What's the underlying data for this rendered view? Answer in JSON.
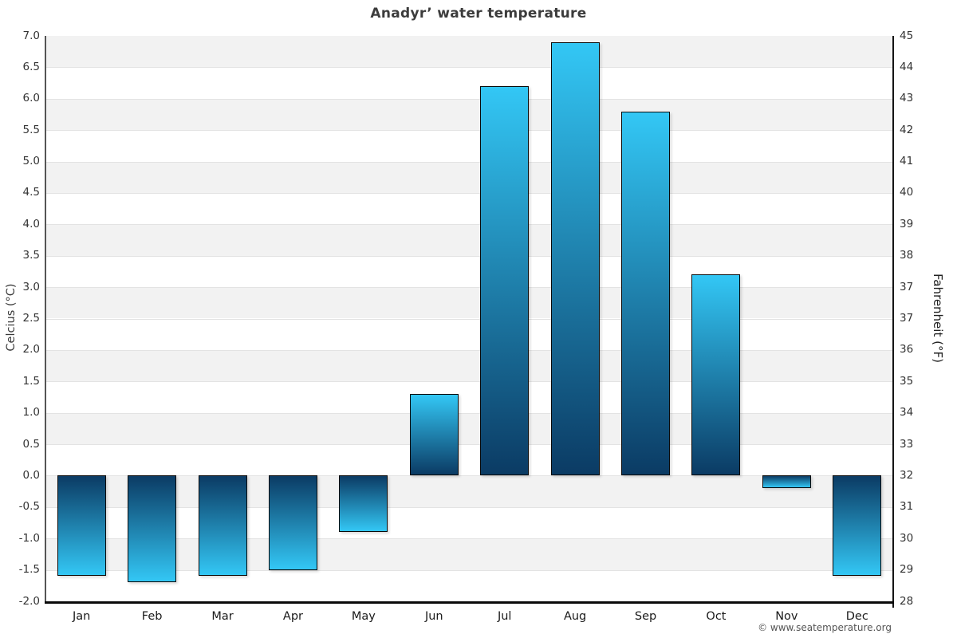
{
  "title": "Anadyr’ water temperature",
  "credit": "© www.seatemperature.org",
  "axes": {
    "left": {
      "label": "Celcius (°C)",
      "ticks": [
        "7.0",
        "6.5",
        "6.0",
        "5.5",
        "5.0",
        "4.5",
        "4.0",
        "3.5",
        "3.0",
        "2.5",
        "2.0",
        "1.5",
        "1.0",
        "0.5",
        "0.0",
        "-0.5",
        "-1.0",
        "-1.5",
        "-2.0"
      ]
    },
    "right": {
      "label": "Fahrenheit (°F)",
      "ticks": [
        "45",
        "44",
        "43",
        "42",
        "41",
        "40",
        "39",
        "38",
        "37",
        "37",
        "36",
        "35",
        "34",
        "33",
        "32",
        "31",
        "30",
        "29",
        "28"
      ]
    }
  },
  "chart_data": {
    "type": "bar",
    "title": "Anadyr’ water temperature",
    "categories": [
      "Jan",
      "Feb",
      "Mar",
      "Apr",
      "May",
      "Jun",
      "Jul",
      "Aug",
      "Sep",
      "Oct",
      "Nov",
      "Dec"
    ],
    "values": [
      -1.6,
      -1.7,
      -1.6,
      -1.5,
      -0.9,
      1.3,
      6.2,
      6.9,
      5.8,
      3.2,
      -0.2,
      -1.6
    ],
    "xlabel": "",
    "ylabel_left": "Celcius (°C)",
    "ylabel_right": "Fahrenheit (°F)",
    "ylim": [
      -2.0,
      7.0
    ],
    "tick_step": 0.5,
    "legend": "none",
    "grid": "striped-horizontal-bands",
    "band_colors": [
      "#f2f2f2",
      "#ffffff"
    ],
    "bar_tip_color": "#33c7f5",
    "bar_zero_color": "#0b3b64",
    "bar_border_color": "#0a0a0a"
  }
}
